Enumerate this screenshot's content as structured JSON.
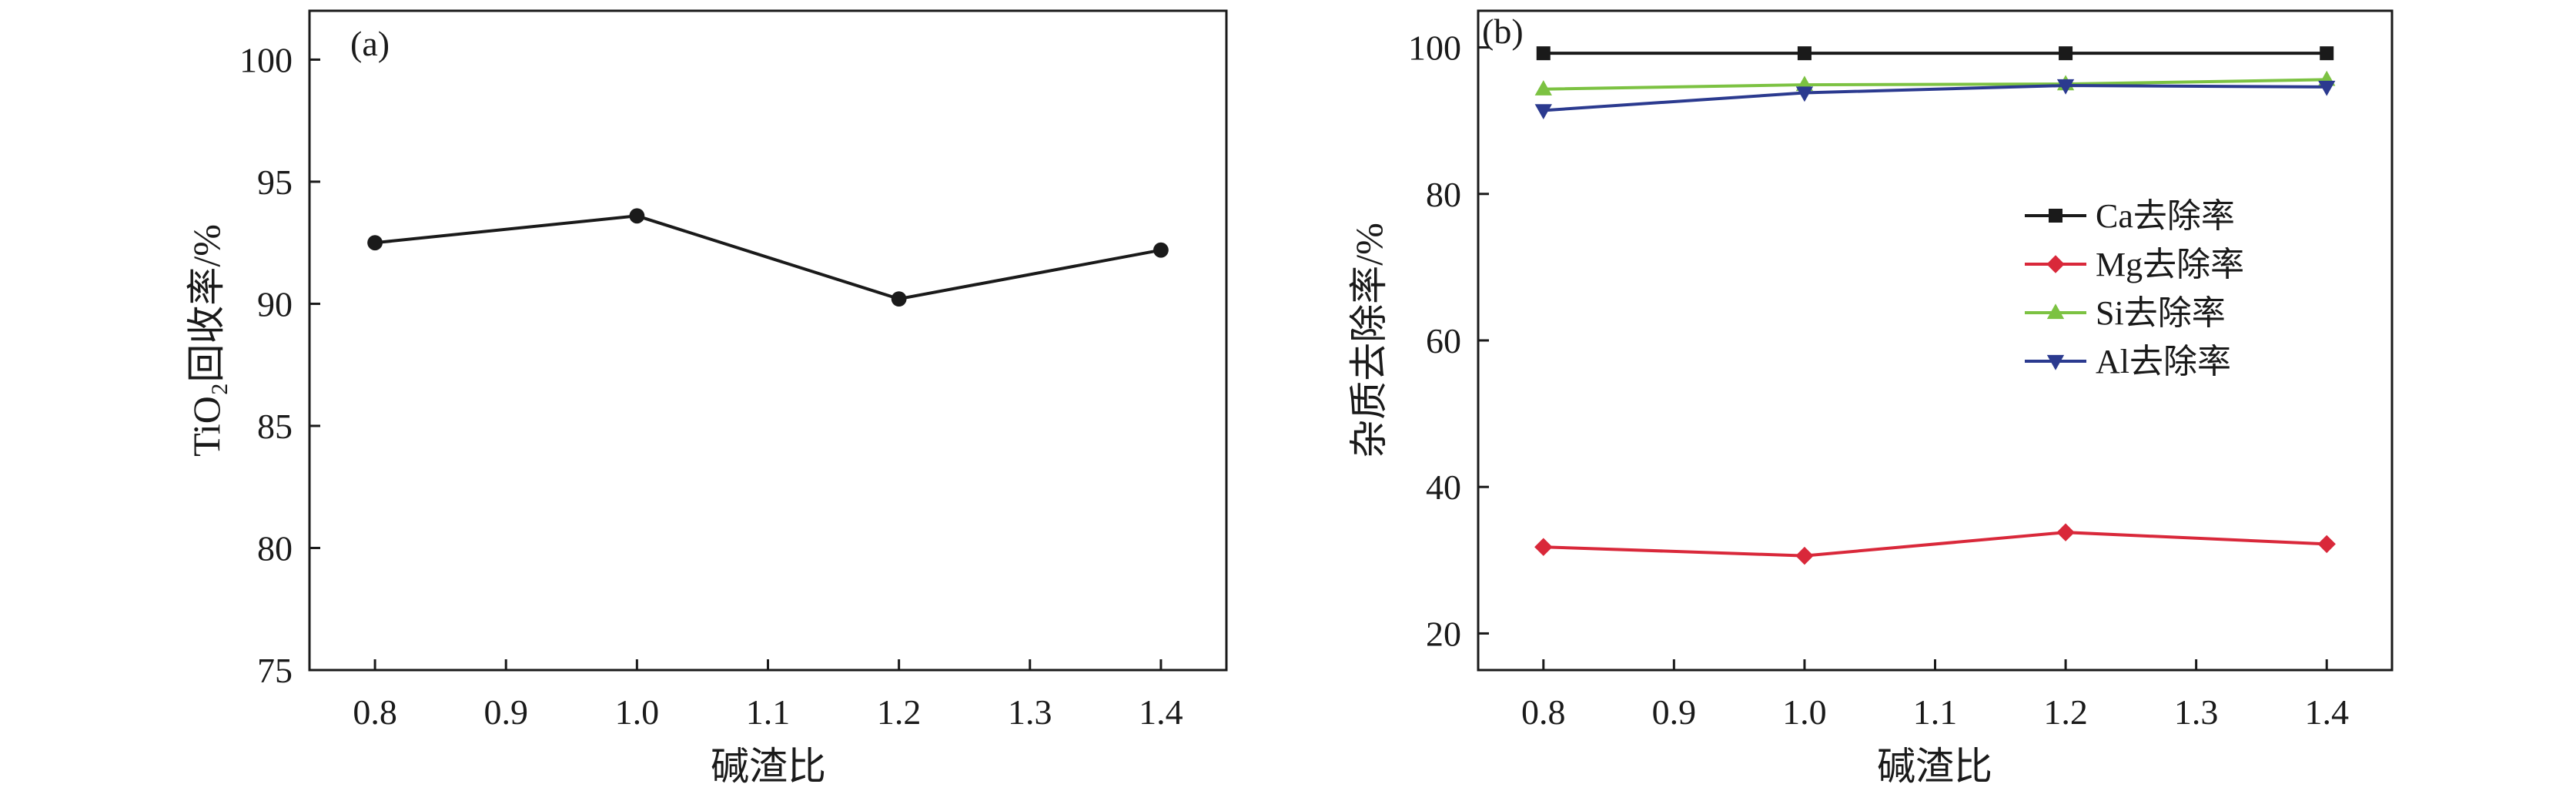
{
  "chart_data": [
    {
      "type": "line",
      "panel_label": "(a)",
      "title": "",
      "xlabel": "碱渣比",
      "ylabel": "TiO₂回收率/%",
      "xlim": [
        0.75,
        1.45
      ],
      "ylim": [
        75,
        102
      ],
      "x_ticks": [
        0.8,
        0.9,
        1.0,
        1.1,
        1.2,
        1.3,
        1.4
      ],
      "x_tick_labels": [
        "0.8",
        "0.9",
        "1.0",
        "1.1",
        "1.2",
        "1.3",
        "1.4"
      ],
      "y_ticks": [
        75,
        80,
        85,
        90,
        95,
        100
      ],
      "y_tick_labels": [
        "75",
        "80",
        "85",
        "90",
        "95",
        "100"
      ],
      "grid": false,
      "series": [
        {
          "x": [
            0.8,
            1.0,
            1.2,
            1.4
          ],
          "values": [
            92.5,
            93.6,
            90.2,
            92.2
          ],
          "color": "#1a1a1a",
          "marker": "circle"
        }
      ]
    },
    {
      "type": "line",
      "panel_label": "(b)",
      "title": "",
      "xlabel": "碱渣比",
      "ylabel": "杂质去除率/%",
      "xlim": [
        0.75,
        1.45
      ],
      "ylim": [
        15,
        105
      ],
      "x_ticks": [
        0.8,
        0.9,
        1.0,
        1.1,
        1.2,
        1.3,
        1.4
      ],
      "x_tick_labels": [
        "0.8",
        "0.9",
        "1.0",
        "1.1",
        "1.2",
        "1.3",
        "1.4"
      ],
      "y_ticks": [
        20,
        40,
        60,
        80,
        100
      ],
      "y_tick_labels": [
        "20",
        "40",
        "60",
        "80",
        "100"
      ],
      "grid": false,
      "legend_position": "right",
      "series": [
        {
          "name": "Ca去除率",
          "x": [
            0.8,
            1.0,
            1.2,
            1.4
          ],
          "values": [
            99.2,
            99.2,
            99.2,
            99.2
          ],
          "color": "#1a1a1a",
          "marker": "square"
        },
        {
          "name": "Mg去除率",
          "x": [
            0.8,
            1.0,
            1.2,
            1.4
          ],
          "values": [
            31.8,
            30.6,
            33.8,
            32.2
          ],
          "color": "#d9283a",
          "marker": "diamond"
        },
        {
          "name": "Si去除率",
          "x": [
            0.8,
            1.0,
            1.2,
            1.4
          ],
          "values": [
            94.3,
            94.9,
            95.0,
            95.6
          ],
          "color": "#7cc242",
          "marker": "triangle-up"
        },
        {
          "name": "Al去除率",
          "x": [
            0.8,
            1.0,
            1.2,
            1.4
          ],
          "values": [
            91.4,
            93.8,
            94.8,
            94.6
          ],
          "color": "#2b3a8f",
          "marker": "triangle-down"
        }
      ]
    }
  ]
}
